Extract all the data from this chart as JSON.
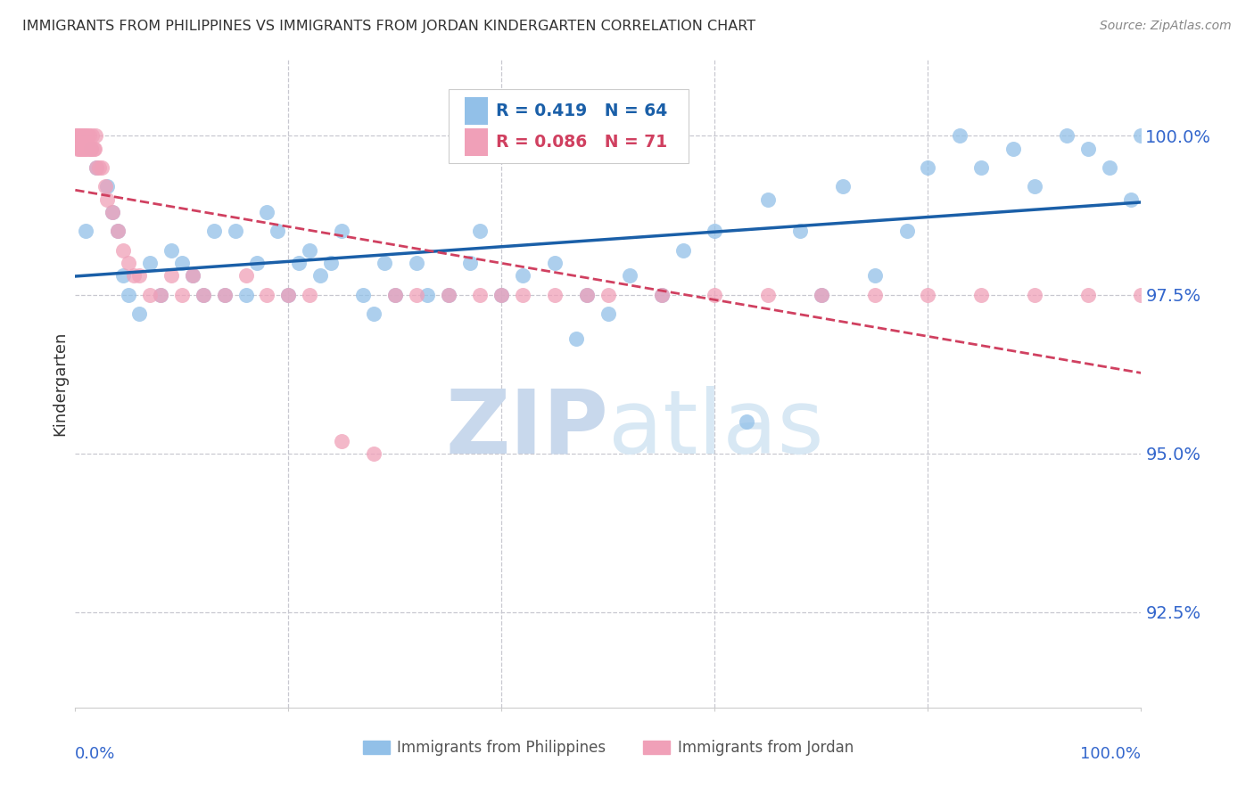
{
  "title": "IMMIGRANTS FROM PHILIPPINES VS IMMIGRANTS FROM JORDAN KINDERGARTEN CORRELATION CHART",
  "source": "Source: ZipAtlas.com",
  "ylabel": "Kindergarten",
  "yticks": [
    92.5,
    95.0,
    97.5,
    100.0
  ],
  "ytick_labels": [
    "92.5%",
    "95.0%",
    "97.5%",
    "100.0%"
  ],
  "xmin": 0.0,
  "xmax": 100.0,
  "ymin": 91.0,
  "ymax": 101.2,
  "r_philippines": 0.419,
  "n_philippines": 64,
  "r_jordan": 0.086,
  "n_jordan": 71,
  "color_philippines": "#92c0e8",
  "color_jordan": "#f0a0b8",
  "color_trendline_philippines": "#1a5fa8",
  "color_trendline_jordan": "#d04060",
  "legend_label_philippines": "Immigrants from Philippines",
  "legend_label_jordan": "Immigrants from Jordan",
  "background_color": "#ffffff",
  "watermark_color": "#ccddf0",
  "philippines_x": [
    1.0,
    1.5,
    2.0,
    3.0,
    3.5,
    4.0,
    4.5,
    5.0,
    6.0,
    7.0,
    8.0,
    9.0,
    10.0,
    11.0,
    12.0,
    13.0,
    14.0,
    15.0,
    16.0,
    17.0,
    18.0,
    19.0,
    20.0,
    21.0,
    22.0,
    23.0,
    24.0,
    25.0,
    27.0,
    28.0,
    29.0,
    30.0,
    32.0,
    33.0,
    35.0,
    37.0,
    38.0,
    40.0,
    42.0,
    45.0,
    47.0,
    48.0,
    50.0,
    52.0,
    55.0,
    57.0,
    60.0,
    63.0,
    65.0,
    68.0,
    70.0,
    72.0,
    75.0,
    78.0,
    80.0,
    83.0,
    85.0,
    88.0,
    90.0,
    93.0,
    95.0,
    97.0,
    99.0,
    100.0
  ],
  "philippines_y": [
    98.5,
    99.8,
    99.5,
    99.2,
    98.8,
    98.5,
    97.8,
    97.5,
    97.2,
    98.0,
    97.5,
    98.2,
    98.0,
    97.8,
    97.5,
    98.5,
    97.5,
    98.5,
    97.5,
    98.0,
    98.8,
    98.5,
    97.5,
    98.0,
    98.2,
    97.8,
    98.0,
    98.5,
    97.5,
    97.2,
    98.0,
    97.5,
    98.0,
    97.5,
    97.5,
    98.0,
    98.5,
    97.5,
    97.8,
    98.0,
    96.8,
    97.5,
    97.2,
    97.8,
    97.5,
    98.2,
    98.5,
    95.5,
    99.0,
    98.5,
    97.5,
    99.2,
    97.8,
    98.5,
    99.5,
    100.0,
    99.5,
    99.8,
    99.2,
    100.0,
    99.8,
    99.5,
    99.0,
    100.0
  ],
  "jordan_x": [
    0.1,
    0.15,
    0.2,
    0.25,
    0.3,
    0.35,
    0.4,
    0.45,
    0.5,
    0.55,
    0.6,
    0.65,
    0.7,
    0.75,
    0.8,
    0.85,
    0.9,
    0.95,
    1.0,
    1.1,
    1.2,
    1.3,
    1.4,
    1.5,
    1.6,
    1.7,
    1.8,
    1.9,
    2.0,
    2.2,
    2.5,
    2.8,
    3.0,
    3.5,
    4.0,
    4.5,
    5.0,
    5.5,
    6.0,
    7.0,
    8.0,
    9.0,
    10.0,
    11.0,
    12.0,
    14.0,
    16.0,
    18.0,
    20.0,
    22.0,
    25.0,
    28.0,
    30.0,
    32.0,
    35.0,
    38.0,
    40.0,
    42.0,
    45.0,
    48.0,
    50.0,
    55.0,
    60.0,
    65.0,
    70.0,
    75.0,
    80.0,
    85.0,
    90.0,
    95.0,
    100.0
  ],
  "jordan_y": [
    100.0,
    100.0,
    100.0,
    99.8,
    100.0,
    99.8,
    100.0,
    99.8,
    100.0,
    99.8,
    100.0,
    99.8,
    99.8,
    100.0,
    99.8,
    100.0,
    99.8,
    100.0,
    99.8,
    100.0,
    99.8,
    100.0,
    99.8,
    99.8,
    100.0,
    99.8,
    99.8,
    100.0,
    99.5,
    99.5,
    99.5,
    99.2,
    99.0,
    98.8,
    98.5,
    98.2,
    98.0,
    97.8,
    97.8,
    97.5,
    97.5,
    97.8,
    97.5,
    97.8,
    97.5,
    97.5,
    97.8,
    97.5,
    97.5,
    97.5,
    95.2,
    95.0,
    97.5,
    97.5,
    97.5,
    97.5,
    97.5,
    97.5,
    97.5,
    97.5,
    97.5,
    97.5,
    97.5,
    97.5,
    97.5,
    97.5,
    97.5,
    97.5,
    97.5,
    97.5,
    97.5
  ],
  "trendline_phil_x0": 0.0,
  "trendline_phil_x1": 100.0,
  "trendline_jord_x0": 0.0,
  "trendline_jord_x1": 100.0
}
